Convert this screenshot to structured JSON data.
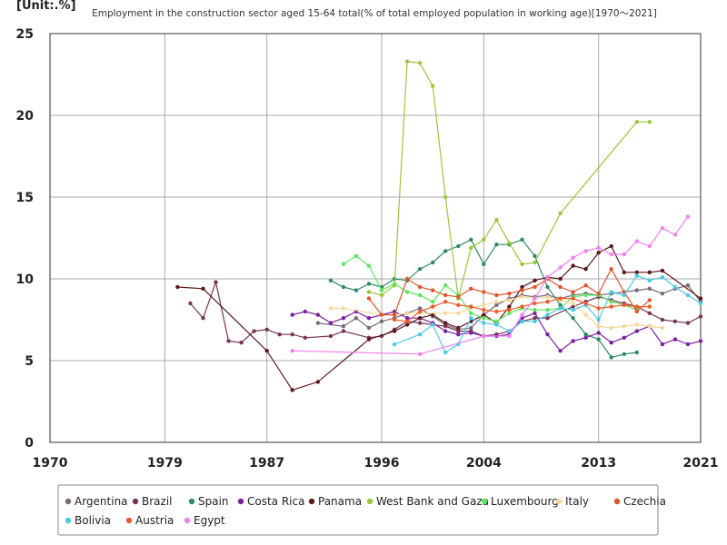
{
  "chart_data": {
    "type": "line",
    "unit_label": "[Unit:.%]",
    "title": "Employment in the construction sector aged 15-64 total(% of total employed population in working age)[1970～2021]",
    "xlabel": "",
    "ylabel": "",
    "xlim": [
      1970,
      2021
    ],
    "ylim": [
      0,
      25
    ],
    "x_ticks": [
      "1970",
      "1979",
      "1987",
      "1996",
      "2004",
      "2013",
      "2021"
    ],
    "y_ticks": [
      "0",
      "5",
      "10",
      "15",
      "20",
      "25"
    ],
    "grid": true,
    "legend_position": "bottom",
    "series": [
      {
        "name": "Argentina",
        "color": "#7a6a78",
        "points": [
          [
            1991,
            7.3
          ],
          [
            1993,
            7.1
          ],
          [
            1994,
            7.6
          ],
          [
            1995,
            7.0
          ],
          [
            1996,
            7.4
          ],
          [
            1997,
            7.6
          ],
          [
            1998,
            7.9
          ],
          [
            1999,
            8.2
          ],
          [
            2000,
            7.7
          ],
          [
            2001,
            7.2
          ],
          [
            2002,
            6.9
          ],
          [
            2003,
            7.0
          ],
          [
            2004,
            7.8
          ],
          [
            2005,
            8.4
          ],
          [
            2006,
            8.8
          ],
          [
            2007,
            9.0
          ],
          [
            2008,
            8.9
          ],
          [
            2009,
            9.0
          ],
          [
            2010,
            8.8
          ],
          [
            2011,
            9.0
          ],
          [
            2012,
            9.1
          ],
          [
            2013,
            9.0
          ],
          [
            2014,
            9.1
          ],
          [
            2015,
            9.2
          ],
          [
            2016,
            9.3
          ],
          [
            2017,
            9.4
          ],
          [
            2018,
            9.1
          ],
          [
            2019,
            9.4
          ],
          [
            2020,
            9.6
          ],
          [
            2021,
            8.6
          ]
        ]
      },
      {
        "name": "Brazil",
        "color": "#7a3358",
        "points": [
          [
            1981,
            8.5
          ],
          [
            1982,
            7.6
          ],
          [
            1983,
            9.8
          ],
          [
            1984,
            6.2
          ],
          [
            1985,
            6.1
          ],
          [
            1986,
            6.8
          ],
          [
            1987,
            6.9
          ],
          [
            1988,
            6.6
          ],
          [
            1989,
            6.6
          ],
          [
            1990,
            6.4
          ],
          [
            1992,
            6.5
          ],
          [
            1993,
            6.8
          ],
          [
            1995,
            6.4
          ],
          [
            1996,
            6.5
          ],
          [
            1997,
            6.9
          ],
          [
            1998,
            7.4
          ],
          [
            1999,
            7.3
          ],
          [
            2001,
            7.1
          ],
          [
            2002,
            6.8
          ],
          [
            2003,
            6.8
          ],
          [
            2004,
            6.5
          ],
          [
            2005,
            6.6
          ],
          [
            2006,
            6.8
          ],
          [
            2007,
            7.4
          ],
          [
            2008,
            7.6
          ],
          [
            2009,
            7.6
          ],
          [
            2011,
            8.3
          ],
          [
            2012,
            8.6
          ],
          [
            2013,
            8.9
          ],
          [
            2014,
            8.7
          ],
          [
            2015,
            8.5
          ],
          [
            2016,
            8.3
          ],
          [
            2017,
            7.9
          ],
          [
            2018,
            7.5
          ],
          [
            2019,
            7.4
          ],
          [
            2020,
            7.3
          ],
          [
            2021,
            7.7
          ]
        ]
      },
      {
        "name": "Spain",
        "color": "#2e8b64",
        "points": [
          [
            1992,
            9.9
          ],
          [
            1993,
            9.5
          ],
          [
            1994,
            9.3
          ],
          [
            1995,
            9.7
          ],
          [
            1996,
            9.5
          ],
          [
            1997,
            10.0
          ],
          [
            1998,
            9.9
          ],
          [
            1999,
            10.6
          ],
          [
            2000,
            11.0
          ],
          [
            2001,
            11.7
          ],
          [
            2002,
            12.0
          ],
          [
            2003,
            12.4
          ],
          [
            2004,
            10.9
          ],
          [
            2005,
            12.1
          ],
          [
            2006,
            12.1
          ],
          [
            2007,
            12.4
          ],
          [
            2008,
            11.4
          ],
          [
            2009,
            9.5
          ],
          [
            2010,
            8.4
          ],
          [
            2011,
            7.6
          ],
          [
            2012,
            6.6
          ],
          [
            2013,
            6.3
          ],
          [
            2014,
            5.2
          ],
          [
            2015,
            5.4
          ],
          [
            2016,
            5.5
          ]
        ]
      },
      {
        "name": "Costa Rica",
        "color": "#7b1fa2",
        "points": [
          [
            1989,
            7.8
          ],
          [
            1990,
            8.0
          ],
          [
            1991,
            7.8
          ],
          [
            1992,
            7.3
          ],
          [
            1993,
            7.6
          ],
          [
            1994,
            8.0
          ],
          [
            1995,
            7.6
          ],
          [
            1997,
            8.0
          ],
          [
            1998,
            7.6
          ],
          [
            1999,
            7.6
          ],
          [
            2000,
            7.3
          ],
          [
            2001,
            6.8
          ],
          [
            2002,
            6.6
          ],
          [
            2003,
            6.7
          ],
          [
            2004,
            6.5
          ],
          [
            2005,
            6.5
          ],
          [
            2006,
            6.6
          ],
          [
            2007,
            7.6
          ],
          [
            2008,
            7.9
          ],
          [
            2009,
            6.6
          ],
          [
            2010,
            5.6
          ],
          [
            2011,
            6.2
          ],
          [
            2012,
            6.4
          ],
          [
            2013,
            6.7
          ],
          [
            2014,
            6.1
          ],
          [
            2015,
            6.4
          ],
          [
            2016,
            6.8
          ],
          [
            2017,
            7.1
          ],
          [
            2018,
            6.0
          ],
          [
            2019,
            6.3
          ],
          [
            2020,
            6.0
          ],
          [
            2021,
            6.2
          ]
        ]
      },
      {
        "name": "Panama",
        "color": "#5b1a1a",
        "points": [
          [
            1980,
            9.5
          ],
          [
            1982,
            9.4
          ],
          [
            1987,
            5.6
          ],
          [
            1989,
            3.2
          ],
          [
            1991,
            3.7
          ],
          [
            1995,
            6.3
          ],
          [
            1997,
            6.8
          ],
          [
            1998,
            7.2
          ],
          [
            1999,
            7.6
          ],
          [
            2000,
            7.8
          ],
          [
            2001,
            7.3
          ],
          [
            2002,
            7.0
          ],
          [
            2003,
            7.4
          ],
          [
            2004,
            7.8
          ],
          [
            2005,
            7.3
          ],
          [
            2006,
            8.3
          ],
          [
            2007,
            9.5
          ],
          [
            2008,
            9.9
          ],
          [
            2009,
            10.1
          ],
          [
            2010,
            10.0
          ],
          [
            2011,
            10.8
          ],
          [
            2012,
            10.6
          ],
          [
            2013,
            11.6
          ],
          [
            2014,
            12.0
          ],
          [
            2015,
            10.4
          ],
          [
            2016,
            10.4
          ],
          [
            2017,
            10.4
          ],
          [
            2018,
            10.5
          ],
          [
            2021,
            8.8
          ]
        ]
      },
      {
        "name": "West Bank and Gaza",
        "color": "#9bc53d",
        "points": [
          [
            1995,
            9.2
          ],
          [
            1996,
            9.0
          ],
          [
            1997,
            9.6
          ],
          [
            1998,
            23.3
          ],
          [
            1999,
            23.2
          ],
          [
            2000,
            21.8
          ],
          [
            2001,
            15.0
          ],
          [
            2002,
            8.8
          ],
          [
            2003,
            11.9
          ],
          [
            2004,
            12.4
          ],
          [
            2005,
            13.6
          ],
          [
            2006,
            12.2
          ],
          [
            2007,
            10.9
          ],
          [
            2008,
            11.0
          ],
          [
            2010,
            14.0
          ],
          [
            2016,
            19.6
          ],
          [
            2017,
            19.6
          ]
        ]
      },
      {
        "name": "Luxembourg",
        "color": "#5ce65c",
        "points": [
          [
            1993,
            10.9
          ],
          [
            1994,
            11.4
          ],
          [
            1995,
            10.8
          ],
          [
            1996,
            9.3
          ],
          [
            1997,
            9.7
          ],
          [
            1998,
            9.2
          ],
          [
            1999,
            9.0
          ],
          [
            2000,
            8.6
          ],
          [
            2001,
            9.6
          ],
          [
            2002,
            9.0
          ],
          [
            2003,
            7.9
          ],
          [
            2004,
            7.6
          ],
          [
            2005,
            7.4
          ],
          [
            2006,
            7.9
          ],
          [
            2007,
            8.2
          ],
          [
            2008,
            8.1
          ],
          [
            2009,
            8.1
          ],
          [
            2010,
            8.2
          ],
          [
            2011,
            8.9
          ],
          [
            2012,
            9.0
          ],
          [
            2013,
            9.0
          ],
          [
            2014,
            8.6
          ],
          [
            2015,
            8.4
          ],
          [
            2016,
            8.1
          ]
        ]
      },
      {
        "name": "Italy",
        "color": "#f5d89a",
        "points": [
          [
            1992,
            8.2
          ],
          [
            1993,
            8.2
          ],
          [
            1996,
            7.8
          ],
          [
            1997,
            7.8
          ],
          [
            1998,
            7.9
          ],
          [
            1999,
            7.9
          ],
          [
            2001,
            7.9
          ],
          [
            2002,
            7.9
          ],
          [
            2003,
            8.2
          ],
          [
            2004,
            8.4
          ],
          [
            2005,
            8.6
          ],
          [
            2006,
            8.7
          ],
          [
            2007,
            8.9
          ],
          [
            2008,
            8.8
          ],
          [
            2009,
            8.9
          ],
          [
            2010,
            8.7
          ],
          [
            2011,
            8.5
          ],
          [
            2012,
            7.8
          ],
          [
            2013,
            7.1
          ],
          [
            2014,
            7.0
          ],
          [
            2015,
            7.1
          ],
          [
            2016,
            7.2
          ],
          [
            2017,
            7.1
          ],
          [
            2018,
            7.0
          ]
        ]
      },
      {
        "name": "Czechia",
        "color": "#e0552b",
        "points": [
          [
            1995,
            8.8
          ],
          [
            1996,
            7.8
          ],
          [
            1997,
            7.8
          ],
          [
            1998,
            10.0
          ],
          [
            1999,
            9.5
          ],
          [
            2000,
            9.3
          ],
          [
            2001,
            9.0
          ],
          [
            2002,
            8.9
          ],
          [
            2003,
            9.4
          ],
          [
            2004,
            9.2
          ],
          [
            2005,
            9.0
          ],
          [
            2006,
            9.1
          ],
          [
            2007,
            9.3
          ],
          [
            2008,
            9.5
          ],
          [
            2009,
            10.0
          ],
          [
            2010,
            9.5
          ],
          [
            2011,
            9.2
          ],
          [
            2012,
            9.6
          ],
          [
            2013,
            9.1
          ],
          [
            2014,
            10.6
          ],
          [
            2015,
            9.2
          ],
          [
            2016,
            8.0
          ],
          [
            2017,
            8.7
          ]
        ]
      },
      {
        "name": "Bolivia",
        "color": "#4ac9e6",
        "points": [
          [
            1997,
            6.0
          ],
          [
            1999,
            6.6
          ],
          [
            2000,
            7.2
          ],
          [
            2001,
            5.5
          ],
          [
            2002,
            6.0
          ],
          [
            2003,
            7.6
          ],
          [
            2004,
            7.3
          ],
          [
            2005,
            7.2
          ],
          [
            2006,
            6.8
          ],
          [
            2007,
            7.4
          ],
          [
            2008,
            7.4
          ],
          [
            2009,
            7.8
          ],
          [
            2010,
            8.2
          ],
          [
            2011,
            8.1
          ],
          [
            2012,
            8.4
          ],
          [
            2013,
            7.5
          ],
          [
            2014,
            9.2
          ],
          [
            2015,
            9.0
          ],
          [
            2016,
            10.2
          ],
          [
            2017,
            9.9
          ],
          [
            2018,
            10.1
          ],
          [
            2019,
            9.5
          ],
          [
            2020,
            9.0
          ],
          [
            2021,
            8.5
          ]
        ]
      },
      {
        "name": "Austria",
        "color": "#f05a28",
        "points": [
          [
            1997,
            7.5
          ],
          [
            1998,
            7.4
          ],
          [
            1999,
            8.0
          ],
          [
            2000,
            8.3
          ],
          [
            2001,
            8.6
          ],
          [
            2002,
            8.4
          ],
          [
            2003,
            8.3
          ],
          [
            2004,
            8.1
          ],
          [
            2005,
            8.0
          ],
          [
            2006,
            8.1
          ],
          [
            2007,
            8.3
          ],
          [
            2008,
            8.5
          ],
          [
            2009,
            8.6
          ],
          [
            2010,
            8.8
          ],
          [
            2011,
            8.8
          ],
          [
            2012,
            8.5
          ],
          [
            2013,
            8.2
          ],
          [
            2014,
            8.3
          ],
          [
            2015,
            8.4
          ],
          [
            2016,
            8.3
          ],
          [
            2017,
            8.3
          ]
        ]
      },
      {
        "name": "Egypt",
        "color": "#ee82ee",
        "points": [
          [
            1989,
            5.6
          ],
          [
            1999,
            5.4
          ],
          [
            2004,
            6.5
          ],
          [
            2006,
            6.5
          ],
          [
            2007,
            7.8
          ],
          [
            2008,
            8.8
          ],
          [
            2009,
            10.1
          ],
          [
            2010,
            10.7
          ],
          [
            2011,
            11.3
          ],
          [
            2012,
            11.7
          ],
          [
            2013,
            11.9
          ],
          [
            2014,
            11.5
          ],
          [
            2015,
            11.5
          ],
          [
            2016,
            12.3
          ],
          [
            2017,
            12.0
          ],
          [
            2018,
            13.1
          ],
          [
            2019,
            12.7
          ],
          [
            2020,
            13.8
          ]
        ]
      }
    ]
  }
}
